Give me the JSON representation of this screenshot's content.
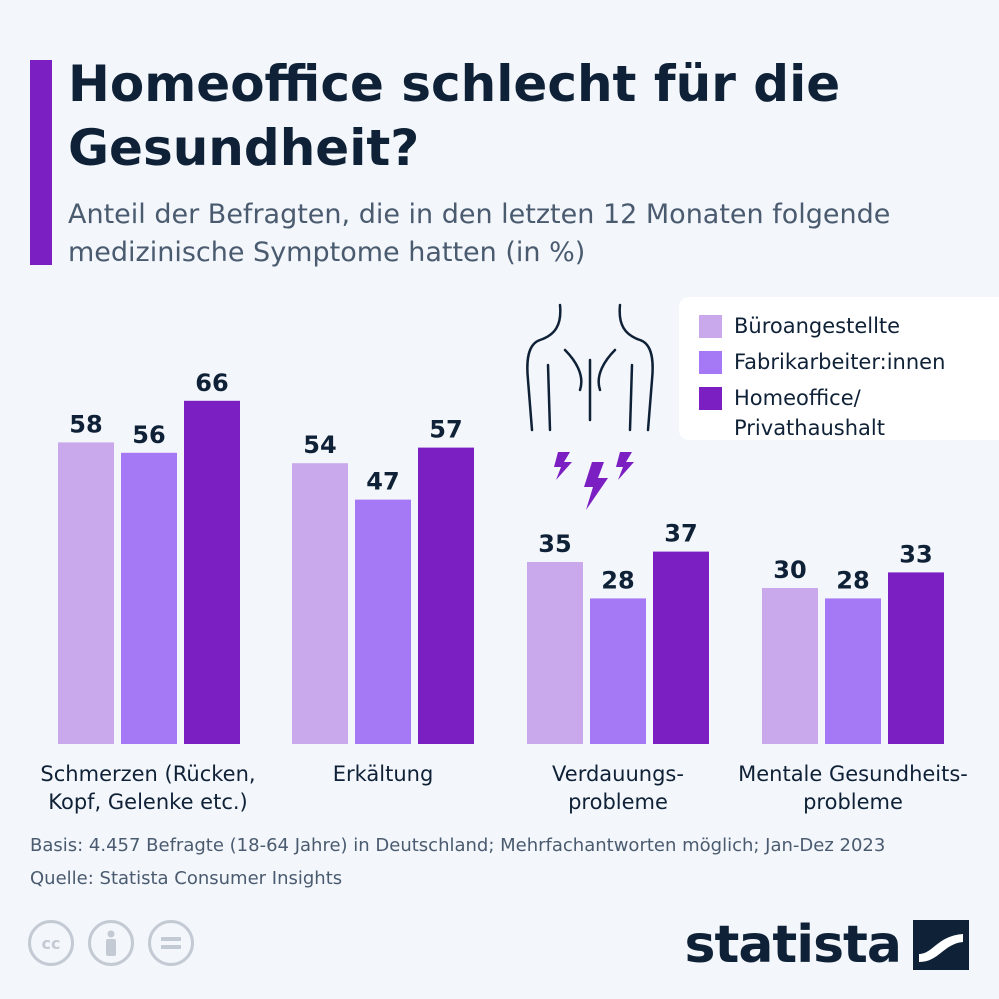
{
  "header": {
    "title": "Homeoffice schlecht für die Gesundheit?",
    "subtitle": "Anteil der Befragten, die in den letzten 12 Monaten folgende medizinische Symptome hatten (in %)"
  },
  "legend": {
    "items": [
      {
        "label": "Büroangestellte",
        "color": "#c9a8eb"
      },
      {
        "label": "Fabrikarbeiter:innen",
        "color": "#a578f5"
      },
      {
        "label": "Homeoffice/\nPrivathaushalt",
        "color": "#7b1fc2"
      }
    ]
  },
  "chart_data": {
    "type": "bar",
    "categories": [
      "Schmerzen (Rücken,\nKopf, Gelenke etc.)",
      "Erkältung",
      "Verdauungs-\nprobleme",
      "Mentale Gesundheits-\nprobleme"
    ],
    "series": [
      {
        "name": "Büroangestellte",
        "values": [
          58,
          54,
          35,
          30
        ],
        "color": "#c9a8eb"
      },
      {
        "name": "Fabrikarbeiter:innen",
        "values": [
          56,
          47,
          28,
          28
        ],
        "color": "#a578f5"
      },
      {
        "name": "Homeoffice/Privathaushalt",
        "values": [
          66,
          57,
          37,
          33
        ],
        "color": "#7b1fc2"
      }
    ],
    "title": "Homeoffice schlecht für die Gesundheit?",
    "ylabel": "",
    "ylim": [
      0,
      100
    ],
    "grid": false,
    "legend_position": "top-right"
  },
  "footer": {
    "basis": "Basis: 4.457 Befragte (18-64 Jahre) in Deutschland; Mehrfachantworten möglich; Jan-Dez 2023",
    "source": "Quelle: Statista Consumer Insights",
    "logo": "statista",
    "icons": [
      "cc-icon",
      "person-icon",
      "equals-icon"
    ]
  }
}
